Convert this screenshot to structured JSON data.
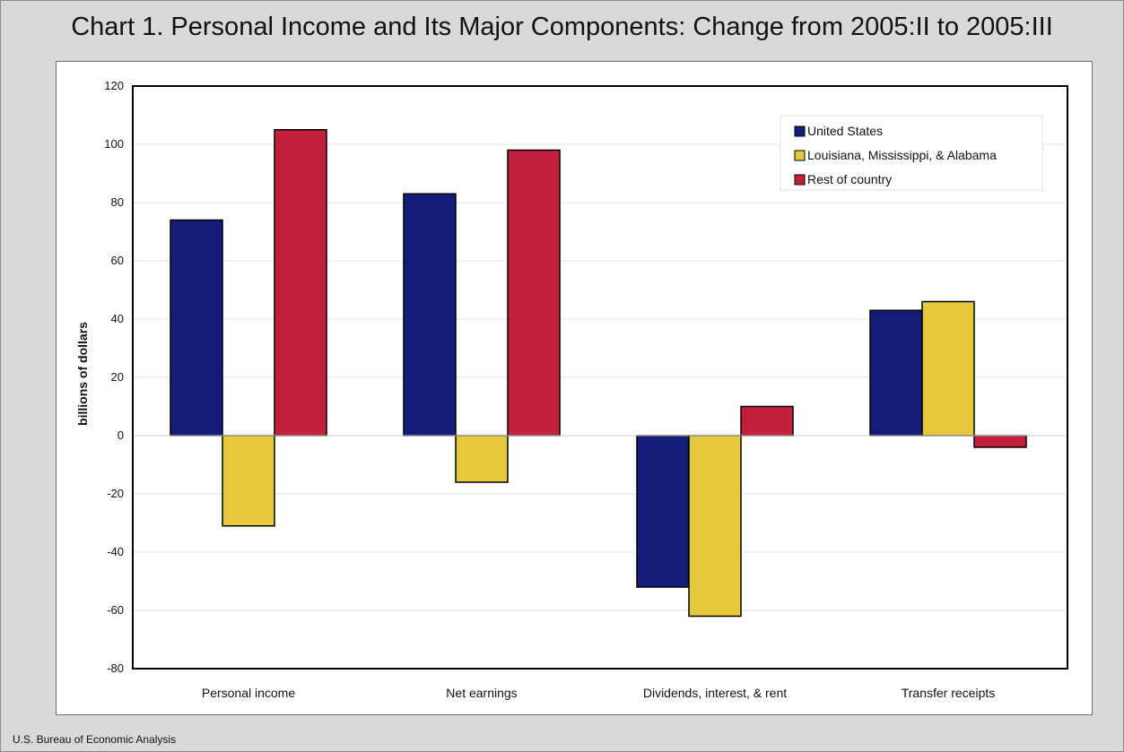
{
  "chart_data": {
    "type": "bar",
    "title": "Chart 1. Personal Income and Its Major Components: Change from 2005:II to 2005:III",
    "ylabel": "billions of dollars",
    "xlabel": "",
    "categories": [
      "Personal income",
      "Net earnings",
      "Dividends, interest, & rent",
      "Transfer receipts"
    ],
    "series": [
      {
        "name": "United States",
        "color": "#141c7a",
        "values": [
          74,
          83,
          -52,
          43
        ]
      },
      {
        "name": "Louisiana, Mississippi, & Alabama",
        "color": "#e6c93a",
        "values": [
          -31,
          -16,
          -62,
          46
        ]
      },
      {
        "name": "Rest of country",
        "color": "#c3203c",
        "values": [
          105,
          98,
          10,
          -4
        ]
      }
    ],
    "ylim": [
      -80,
      120
    ],
    "yticks": [
      -80,
      -60,
      -40,
      -20,
      0,
      20,
      40,
      60,
      80,
      100,
      120
    ],
    "grid": true,
    "legend": "top-right"
  },
  "footer": "U.S. Bureau of Economic Analysis"
}
